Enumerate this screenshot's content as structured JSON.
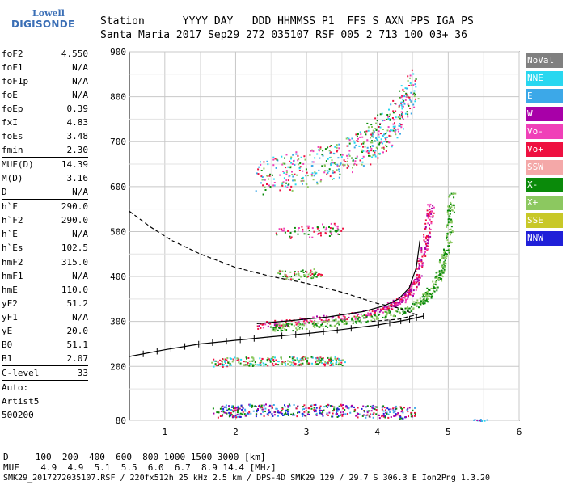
{
  "logo": {
    "line1": "Lowell",
    "line2": "DIGISONDE"
  },
  "header": {
    "row1": "Station      YYYY DAY   DDD HHMMSS P1  FFS S AXN PPS IGA PS",
    "row2": "Santa Maria 2017 Sep29 272 035107 RSF 005 2 713 100 03+ 36"
  },
  "params": [
    {
      "label": "foF2",
      "value": "4.550"
    },
    {
      "label": "foF1",
      "value": "N/A"
    },
    {
      "label": "foF1p",
      "value": "N/A"
    },
    {
      "label": "foE",
      "value": "N/A"
    },
    {
      "label": "foEp",
      "value": "0.39"
    },
    {
      "label": "fxI",
      "value": "4.83"
    },
    {
      "label": "foEs",
      "value": "3.48"
    },
    {
      "label": "fmin",
      "value": "2.30"
    },
    {
      "sep": true
    },
    {
      "label": "MUF(D)",
      "value": "14.39"
    },
    {
      "label": "M(D)",
      "value": "3.16"
    },
    {
      "label": "D",
      "value": "N/A"
    },
    {
      "sep": true
    },
    {
      "label": "h`F",
      "value": "290.0"
    },
    {
      "label": "h`F2",
      "value": "290.0"
    },
    {
      "label": "h`E",
      "value": "N/A"
    },
    {
      "label": "h`Es",
      "value": "102.5"
    },
    {
      "sep": true
    },
    {
      "label": "hmF2",
      "value": "315.0"
    },
    {
      "label": "hmF1",
      "value": "N/A"
    },
    {
      "label": "hmE",
      "value": "110.0"
    },
    {
      "label": "yF2",
      "value": "51.2"
    },
    {
      "label": "yF1",
      "value": "N/A"
    },
    {
      "label": "yE",
      "value": "20.0"
    },
    {
      "label": "B0",
      "value": "51.1"
    },
    {
      "label": "B1",
      "value": "2.07"
    },
    {
      "sep": true
    },
    {
      "label": "C-level",
      "value": "33"
    },
    {
      "sep": true
    },
    {
      "label": "Auto:",
      "value": ""
    },
    {
      "label": "Artist5",
      "value": ""
    },
    {
      "label": "500200",
      "value": ""
    }
  ],
  "legend": [
    {
      "label": "NoVal",
      "color": "#808080"
    },
    {
      "label": "NNE",
      "color": "#28d7f0"
    },
    {
      "label": "E",
      "color": "#3ca8e8"
    },
    {
      "label": "W",
      "color": "#a800a8"
    },
    {
      "label": "Vo-",
      "color": "#f040b8"
    },
    {
      "label": "Vo+",
      "color": "#ee1040"
    },
    {
      "label": "SSW",
      "color": "#f4a8a8"
    },
    {
      "label": "X-",
      "color": "#0a8a0a"
    },
    {
      "label": "X+",
      "color": "#8cc860"
    },
    {
      "label": "SSE",
      "color": "#c8c828"
    },
    {
      "label": "NNW",
      "color": "#2020d8"
    }
  ],
  "bottom": {
    "d_row": "D     100  200  400  600  800 1000 1500 3000 [km]",
    "muf_row": "MUF    4.9  4.9  5.1  5.5  6.0  6.7  8.9 14.4 [MHz]",
    "footer": "SMK29_2017272035107.RSF / 220fx512h 25 kHz 2.5 km / DPS-4D SMK29 129 / 29.7 S 306.3 E Ion2Png 1.3.20"
  },
  "chart_data": {
    "type": "scatter",
    "xlim": [
      0.5,
      6
    ],
    "ylim": [
      80,
      900
    ],
    "x_ticks": [
      "1",
      "2",
      "3",
      "4",
      "5",
      "6"
    ],
    "y_ticks": [
      "80",
      "200",
      "300",
      "400",
      "500",
      "600",
      "700",
      "800",
      "900"
    ],
    "grid": true,
    "profile_dashed": [
      [
        0.5,
        545
      ],
      [
        0.8,
        510
      ],
      [
        1.1,
        480
      ],
      [
        1.5,
        450
      ],
      [
        2.0,
        420
      ],
      [
        2.5,
        400
      ],
      [
        3.0,
        385
      ],
      [
        3.5,
        365
      ],
      [
        4.0,
        340
      ],
      [
        4.3,
        330
      ],
      [
        4.55,
        315
      ],
      [
        4.3,
        305
      ],
      [
        3.9,
        300
      ]
    ],
    "profile_solid": [
      [
        0.5,
        222
      ],
      [
        1.0,
        237
      ],
      [
        1.5,
        250
      ],
      [
        2.0,
        258
      ],
      [
        2.5,
        266
      ],
      [
        3.0,
        273
      ],
      [
        3.5,
        282
      ],
      [
        4.0,
        292
      ],
      [
        4.4,
        303
      ],
      [
        4.65,
        312
      ]
    ],
    "trace_fitted": [
      [
        2.3,
        295
      ],
      [
        2.8,
        302
      ],
      [
        3.3,
        310
      ],
      [
        3.8,
        322
      ],
      [
        4.1,
        335
      ],
      [
        4.3,
        350
      ],
      [
        4.45,
        375
      ],
      [
        4.55,
        420
      ],
      [
        4.6,
        480
      ]
    ],
    "echo_clusters": [
      {
        "mode": "O",
        "band": [
          [
            2.3,
            292
          ],
          [
            2.8,
            300
          ],
          [
            3.3,
            308
          ],
          [
            3.8,
            318
          ],
          [
            4.1,
            330
          ],
          [
            4.3,
            345
          ],
          [
            4.45,
            365
          ],
          [
            4.55,
            395
          ],
          [
            4.62,
            440
          ],
          [
            4.7,
            500
          ],
          [
            4.75,
            560
          ]
        ],
        "colors": [
          "#ee1040",
          "#f040b8",
          "#a800a8"
        ]
      },
      {
        "mode": "X",
        "band": [
          [
            2.5,
            286
          ],
          [
            3.0,
            292
          ],
          [
            3.5,
            300
          ],
          [
            4.0,
            312
          ],
          [
            4.4,
            328
          ],
          [
            4.65,
            350
          ],
          [
            4.8,
            380
          ],
          [
            4.9,
            420
          ],
          [
            4.98,
            470
          ],
          [
            5.02,
            530
          ],
          [
            5.05,
            590
          ]
        ],
        "colors": [
          "#0a8a0a",
          "#8cc860"
        ]
      },
      {
        "mode": "Es",
        "band": [
          [
            1.7,
            210
          ],
          [
            2.2,
            212
          ],
          [
            2.7,
            214
          ],
          [
            3.2,
            213
          ],
          [
            3.5,
            212
          ]
        ],
        "colors": [
          "#8cc860",
          "#0a8a0a",
          "#28d7f0",
          "#ee1040"
        ]
      },
      {
        "mode": "E-low",
        "band": [
          [
            1.7,
            100
          ],
          [
            2.2,
            103
          ],
          [
            2.8,
            104
          ],
          [
            3.4,
            103
          ],
          [
            4.0,
            100
          ],
          [
            4.5,
            98
          ]
        ],
        "colors": [
          "#2020d8",
          "#0a8a0a",
          "#a800a8",
          "#3ca8e8",
          "#ee1040"
        ]
      },
      {
        "mode": "F2-multi",
        "band": [
          [
            2.3,
            615
          ],
          [
            2.8,
            635
          ],
          [
            3.3,
            655
          ],
          [
            3.7,
            680
          ],
          [
            4.0,
            710
          ],
          [
            4.3,
            760
          ],
          [
            4.5,
            830
          ]
        ],
        "colors": [
          "#28d7f0",
          "#3ca8e8",
          "#ee1040",
          "#0a8a0a",
          "#8cc860",
          "#f040b8"
        ]
      },
      {
        "mode": "F2-2hop",
        "band": [
          [
            2.5,
            500
          ],
          [
            3.0,
            500
          ],
          [
            3.3,
            505
          ],
          [
            3.5,
            510
          ]
        ],
        "colors": [
          "#f040b8",
          "#0a8a0a",
          "#ee1040"
        ]
      },
      {
        "mode": "Es-2",
        "band": [
          [
            2.6,
            405
          ],
          [
            2.9,
            405
          ],
          [
            3.2,
            410
          ]
        ],
        "colors": [
          "#ee1040",
          "#8cc860",
          "#0a8a0a"
        ]
      },
      {
        "mode": "Edge",
        "band": [
          [
            5.2,
            80
          ],
          [
            5.5,
            82
          ]
        ],
        "colors": [
          "#3ca8e8",
          "#28d7f0",
          "#a800a8"
        ]
      }
    ]
  }
}
